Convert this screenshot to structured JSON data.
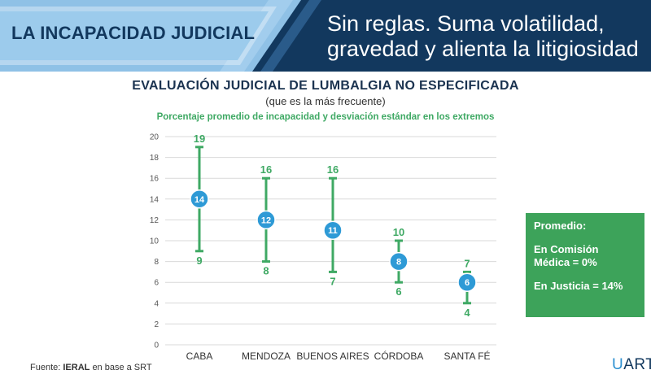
{
  "banner": {
    "tag": "LA INCAPACIDAD JUDICIAL",
    "headline_line1": "Sin reglas. Suma volatilidad,",
    "headline_line2": "gravedad y alienta la litigiosidad"
  },
  "chart_data": {
    "type": "scatter",
    "title": "EVALUACIÓN JUDICIAL DE LUMBALGIA NO ESPECIFICADA",
    "subtitle": "(que es la más frecuente)",
    "note": "Porcentaje promedio de incapacidad y desviación estándar en los extremos",
    "categories": [
      "CABA",
      "MENDOZA",
      "BUENOS AIRES",
      "CÓRDOBA",
      "SANTA FÉ"
    ],
    "mean": [
      14,
      12,
      11,
      8,
      6
    ],
    "upper": [
      19,
      16,
      16,
      10,
      7
    ],
    "lower": [
      9,
      8,
      7,
      6,
      4
    ],
    "ylim": [
      0,
      20
    ],
    "yticks": [
      0,
      2,
      4,
      6,
      8,
      10,
      12,
      14,
      16,
      18,
      20
    ],
    "grid": true,
    "colors": {
      "bar": "#3fa964",
      "point": "#2e9ad6",
      "grid": "#d9d9d9"
    }
  },
  "info_box": {
    "title": "Promedio:",
    "comision_line1": "En Comisión",
    "comision_line2": "Médica = 0%",
    "justicia": "En Justicia = 14%",
    "color": "#3da35a"
  },
  "footer": {
    "source_prefix": "Fuente:",
    "source_bold": "IERAL",
    "source_suffix": "en base a SRT",
    "logo_u": "U",
    "logo_rest": "ART"
  }
}
